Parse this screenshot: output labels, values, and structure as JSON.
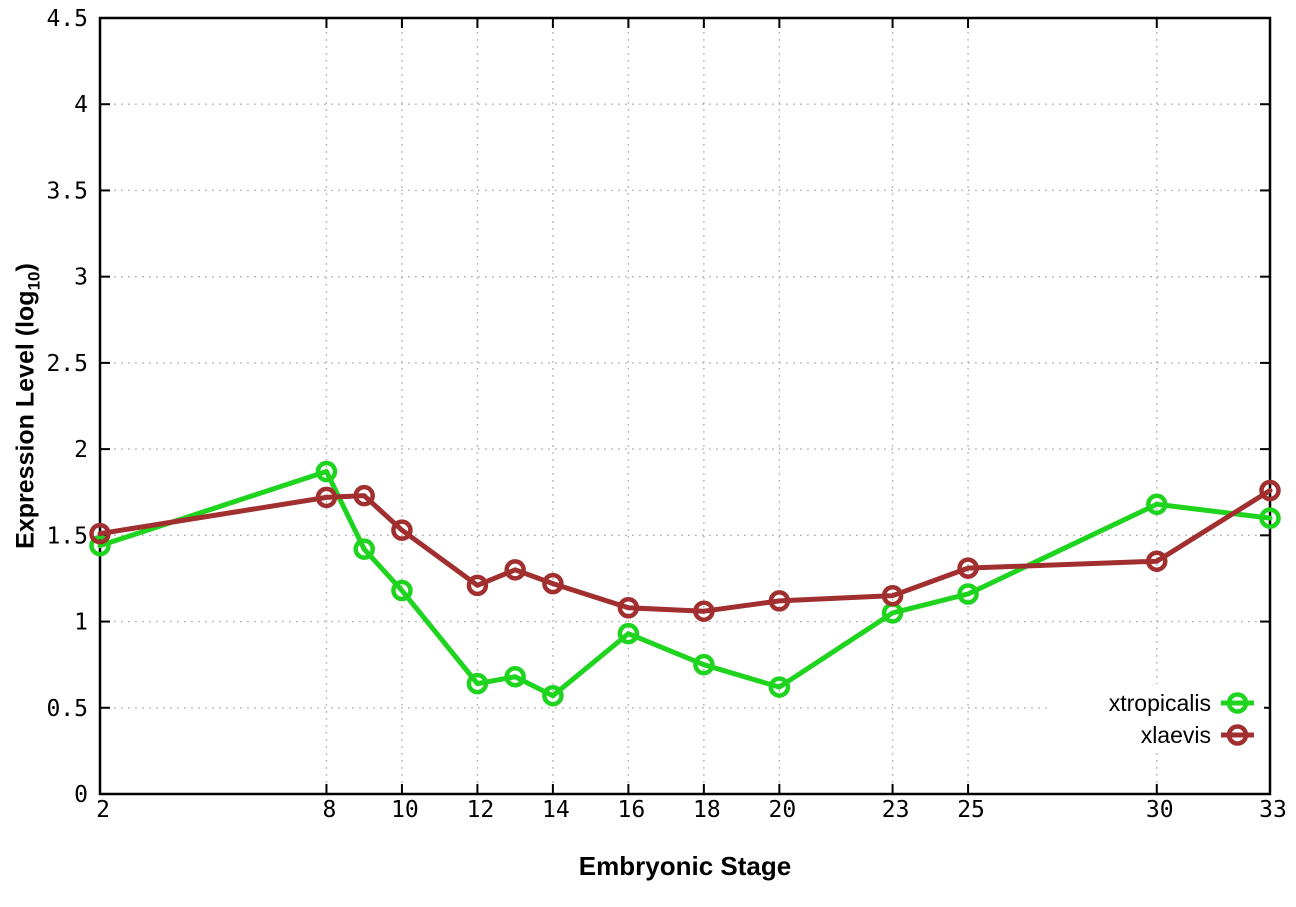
{
  "page": {
    "background": "#ffffff"
  },
  "chart_data": {
    "type": "line",
    "title": "",
    "xlabel": "Embryonic Stage",
    "ylabel": "Expression Level (log10)",
    "ylabel_parts": {
      "main": "Expression Level (log",
      "sub": "10",
      "end": ")"
    },
    "x": [
      2,
      8,
      9,
      10,
      12,
      13,
      14,
      16,
      18,
      20,
      23,
      25,
      30,
      33
    ],
    "xlim": [
      2,
      33
    ],
    "ylim": [
      0,
      4.5
    ],
    "x_ticks": [
      2,
      8,
      10,
      12,
      14,
      16,
      18,
      20,
      23,
      25,
      30,
      33
    ],
    "y_ticks": [
      0,
      0.5,
      1,
      1.5,
      2,
      2.5,
      3,
      3.5,
      4,
      4.5
    ],
    "grid": true,
    "legend_position": "inside-bottom-right",
    "marker": "open-circle",
    "axis_color": "#000000",
    "grid_color": "#b4b4b4",
    "series": [
      {
        "name": "xtropicalis",
        "color": "#1fd41f",
        "values": [
          1.44,
          1.87,
          1.42,
          1.18,
          0.64,
          0.68,
          0.57,
          0.93,
          0.75,
          0.62,
          1.05,
          1.16,
          1.68,
          1.6
        ]
      },
      {
        "name": "xlaevis",
        "color": "#a12f2f",
        "values": [
          1.51,
          1.72,
          1.73,
          1.53,
          1.21,
          1.3,
          1.22,
          1.08,
          1.06,
          1.12,
          1.15,
          1.31,
          1.35,
          1.76
        ]
      }
    ]
  }
}
